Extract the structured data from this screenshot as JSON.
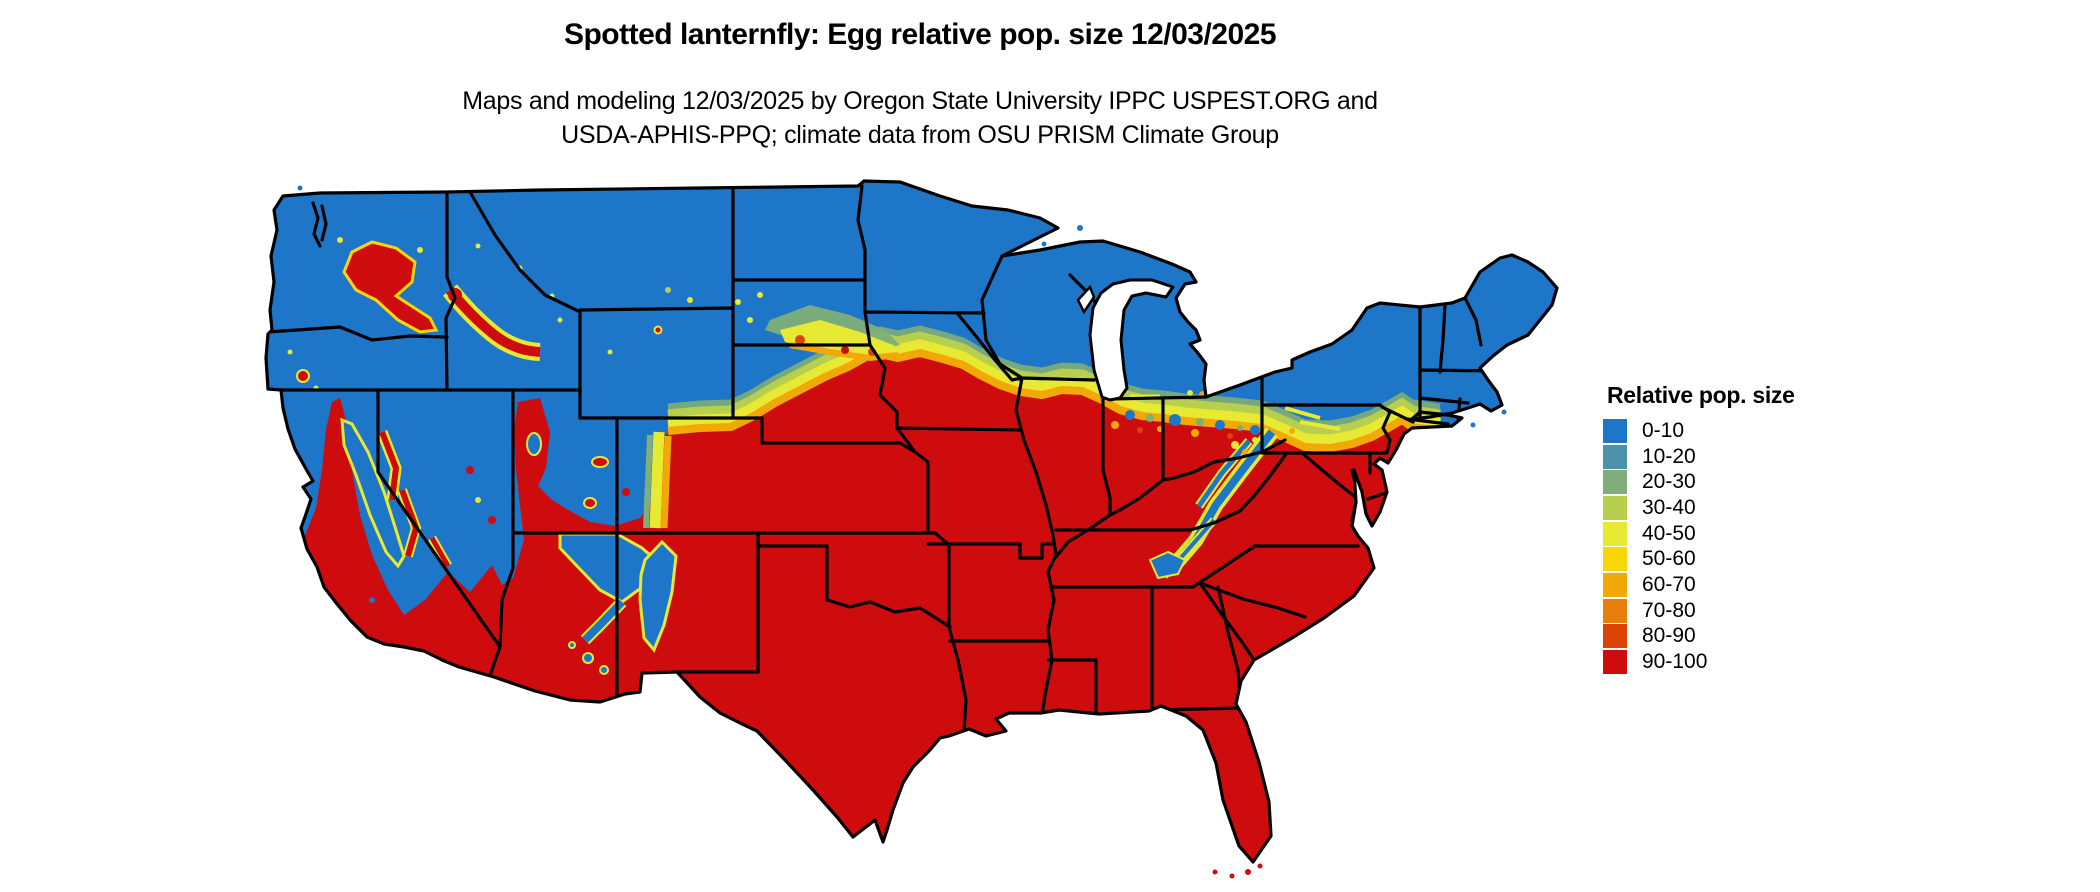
{
  "header": {
    "title": "Spotted lanternfly: Egg relative pop. size 12/03/2025",
    "subtitle_line1": "Maps and modeling 12/03/2025 by Oregon State University IPPC USPEST.ORG and",
    "subtitle_line2": "USDA-APHIS-PPQ; climate data from OSU PRISM Climate Group"
  },
  "legend": {
    "title": "Relative pop. size",
    "classes": [
      {
        "label": "0-10",
        "color": "#1e76c8"
      },
      {
        "label": "10-20",
        "color": "#4d92a8"
      },
      {
        "label": "20-30",
        "color": "#7fae78"
      },
      {
        "label": "30-40",
        "color": "#b8cf4e"
      },
      {
        "label": "40-50",
        "color": "#e8e933"
      },
      {
        "label": "50-60",
        "color": "#f8d608"
      },
      {
        "label": "60-70",
        "color": "#f2a908"
      },
      {
        "label": "70-80",
        "color": "#e87f0a"
      },
      {
        "label": "80-90",
        "color": "#dc4407"
      },
      {
        "label": "90-100",
        "color": "#ce0c0d"
      }
    ]
  },
  "map": {
    "border_color": "#000000",
    "background_color": "#ffffff",
    "low_value_fill": "#1e76c8",
    "high_value_fill": "#ce0c0d"
  }
}
